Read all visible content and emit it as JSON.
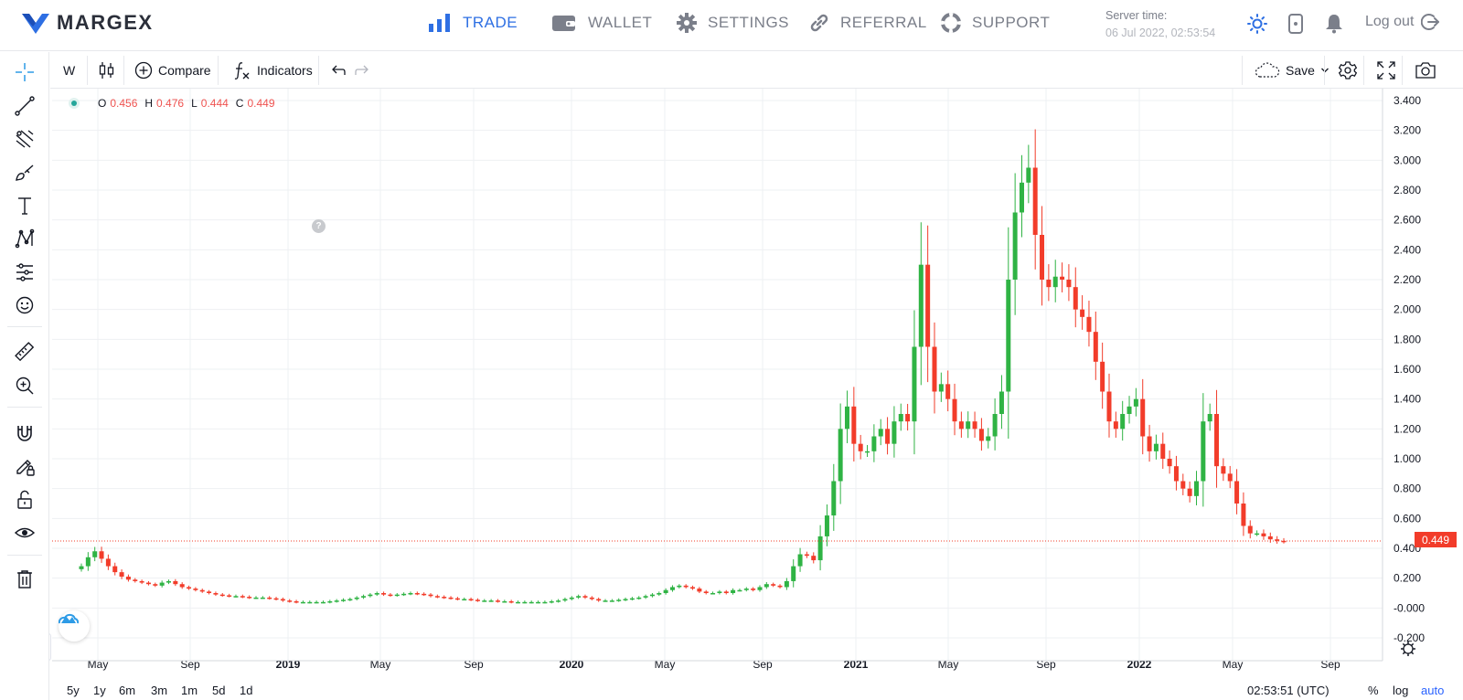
{
  "brand": {
    "name": "MARGEX"
  },
  "nav": {
    "items": [
      {
        "label": "TRADE",
        "icon": "bar-chart-icon",
        "active": true
      },
      {
        "label": "WALLET",
        "icon": "wallet-icon",
        "active": false
      },
      {
        "label": "SETTINGS",
        "icon": "gear-icon",
        "active": false
      },
      {
        "label": "REFERRAL",
        "icon": "link-icon",
        "active": false
      },
      {
        "label": "SUPPORT",
        "icon": "lifebuoy-icon",
        "active": false
      }
    ],
    "server_time_label": "Server time:",
    "server_time_value": "06 Jul 2022, 02:53:54",
    "logout_label": "Log out"
  },
  "colors": {
    "accent": "#2e6fe3",
    "up": "#26a69a",
    "up_fill": "#2fb344",
    "down": "#f23c2a",
    "grid": "#eef0f3"
  },
  "left_tools": [
    "crosshair-icon",
    "trend-line-icon",
    "pitchfork-icon",
    "brush-icon",
    "text-icon",
    "pattern-icon",
    "forecast-icon",
    "emoji-icon",
    "ruler-icon",
    "zoom-in-icon",
    "magnet-icon",
    "lock-drawing-icon",
    "unlock-icon",
    "eye-icon",
    "trash-icon"
  ],
  "chart_toolbar": {
    "interval": "W",
    "compare_label": "Compare",
    "indicators_label": "Indicators",
    "save_label": "Save"
  },
  "ohlc": {
    "o_label": "O",
    "o": "0.456",
    "h_label": "H",
    "h": "0.476",
    "l_label": "L",
    "l": "0.444",
    "c_label": "C",
    "c": "0.449"
  },
  "last_price": "0.449",
  "chart_data": {
    "type": "candlestick",
    "interval": "weekly",
    "y_axis": {
      "min": -0.2,
      "max": 3.4,
      "ticks": [
        "3.400",
        "3.200",
        "3.000",
        "2.800",
        "2.600",
        "2.400",
        "2.200",
        "2.000",
        "1.800",
        "1.600",
        "1.400",
        "1.200",
        "1.000",
        "0.800",
        "0.600",
        "0.400",
        "0.200",
        "-0.000",
        "-0.200"
      ]
    },
    "x_axis": {
      "ticks": [
        {
          "label": "May",
          "bold": false
        },
        {
          "label": "Sep",
          "bold": false
        },
        {
          "label": "2019",
          "bold": true
        },
        {
          "label": "May",
          "bold": false
        },
        {
          "label": "Sep",
          "bold": false
        },
        {
          "label": "2020",
          "bold": true
        },
        {
          "label": "May",
          "bold": false
        },
        {
          "label": "Sep",
          "bold": false
        },
        {
          "label": "2021",
          "bold": true
        },
        {
          "label": "May",
          "bold": false
        },
        {
          "label": "Sep",
          "bold": false
        },
        {
          "label": "2022",
          "bold": true
        },
        {
          "label": "May",
          "bold": false
        },
        {
          "label": "Sep",
          "bold": false
        }
      ]
    },
    "last_close": 0.449,
    "closes": [
      0.28,
      0.34,
      0.38,
      0.33,
      0.28,
      0.24,
      0.21,
      0.19,
      0.18,
      0.17,
      0.16,
      0.15,
      0.17,
      0.18,
      0.16,
      0.14,
      0.13,
      0.12,
      0.11,
      0.1,
      0.09,
      0.085,
      0.08,
      0.08,
      0.075,
      0.07,
      0.07,
      0.07,
      0.065,
      0.06,
      0.05,
      0.045,
      0.04,
      0.04,
      0.04,
      0.04,
      0.04,
      0.045,
      0.05,
      0.055,
      0.06,
      0.07,
      0.08,
      0.09,
      0.1,
      0.09,
      0.085,
      0.09,
      0.095,
      0.1,
      0.095,
      0.09,
      0.08,
      0.075,
      0.07,
      0.065,
      0.06,
      0.06,
      0.055,
      0.05,
      0.05,
      0.05,
      0.045,
      0.045,
      0.04,
      0.04,
      0.04,
      0.04,
      0.04,
      0.04,
      0.045,
      0.05,
      0.06,
      0.07,
      0.08,
      0.07,
      0.06,
      0.05,
      0.05,
      0.05,
      0.055,
      0.06,
      0.065,
      0.07,
      0.08,
      0.09,
      0.1,
      0.12,
      0.14,
      0.15,
      0.14,
      0.13,
      0.11,
      0.1,
      0.1,
      0.11,
      0.1,
      0.12,
      0.12,
      0.13,
      0.12,
      0.14,
      0.16,
      0.15,
      0.14,
      0.18,
      0.28,
      0.36,
      0.35,
      0.32,
      0.48,
      0.62,
      0.85,
      1.2,
      1.35,
      1.1,
      1.05,
      1.05,
      1.15,
      1.2,
      1.1,
      1.25,
      1.3,
      1.25,
      1.75,
      2.3,
      1.75,
      1.45,
      1.5,
      1.4,
      1.25,
      1.2,
      1.25,
      1.2,
      1.12,
      1.15,
      1.3,
      1.45,
      2.2,
      2.65,
      2.85,
      2.95,
      2.5,
      2.2,
      2.15,
      2.22,
      2.2,
      2.15,
      2.0,
      1.95,
      1.85,
      1.65,
      1.45,
      1.25,
      1.2,
      1.3,
      1.35,
      1.4,
      1.15,
      1.05,
      1.1,
      1.0,
      0.95,
      0.85,
      0.8,
      0.75,
      0.85,
      1.25,
      1.3,
      0.95,
      0.9,
      0.85,
      0.7,
      0.55,
      0.5,
      0.5,
      0.48,
      0.46,
      0.45,
      0.449
    ]
  },
  "bottom_bar": {
    "ranges": [
      "5y",
      "1y",
      "6m",
      "3m",
      "1m",
      "5d",
      "1d"
    ],
    "time": "02:53:51 (UTC)",
    "percent_label": "%",
    "log_label": "log",
    "auto_label": "auto"
  }
}
